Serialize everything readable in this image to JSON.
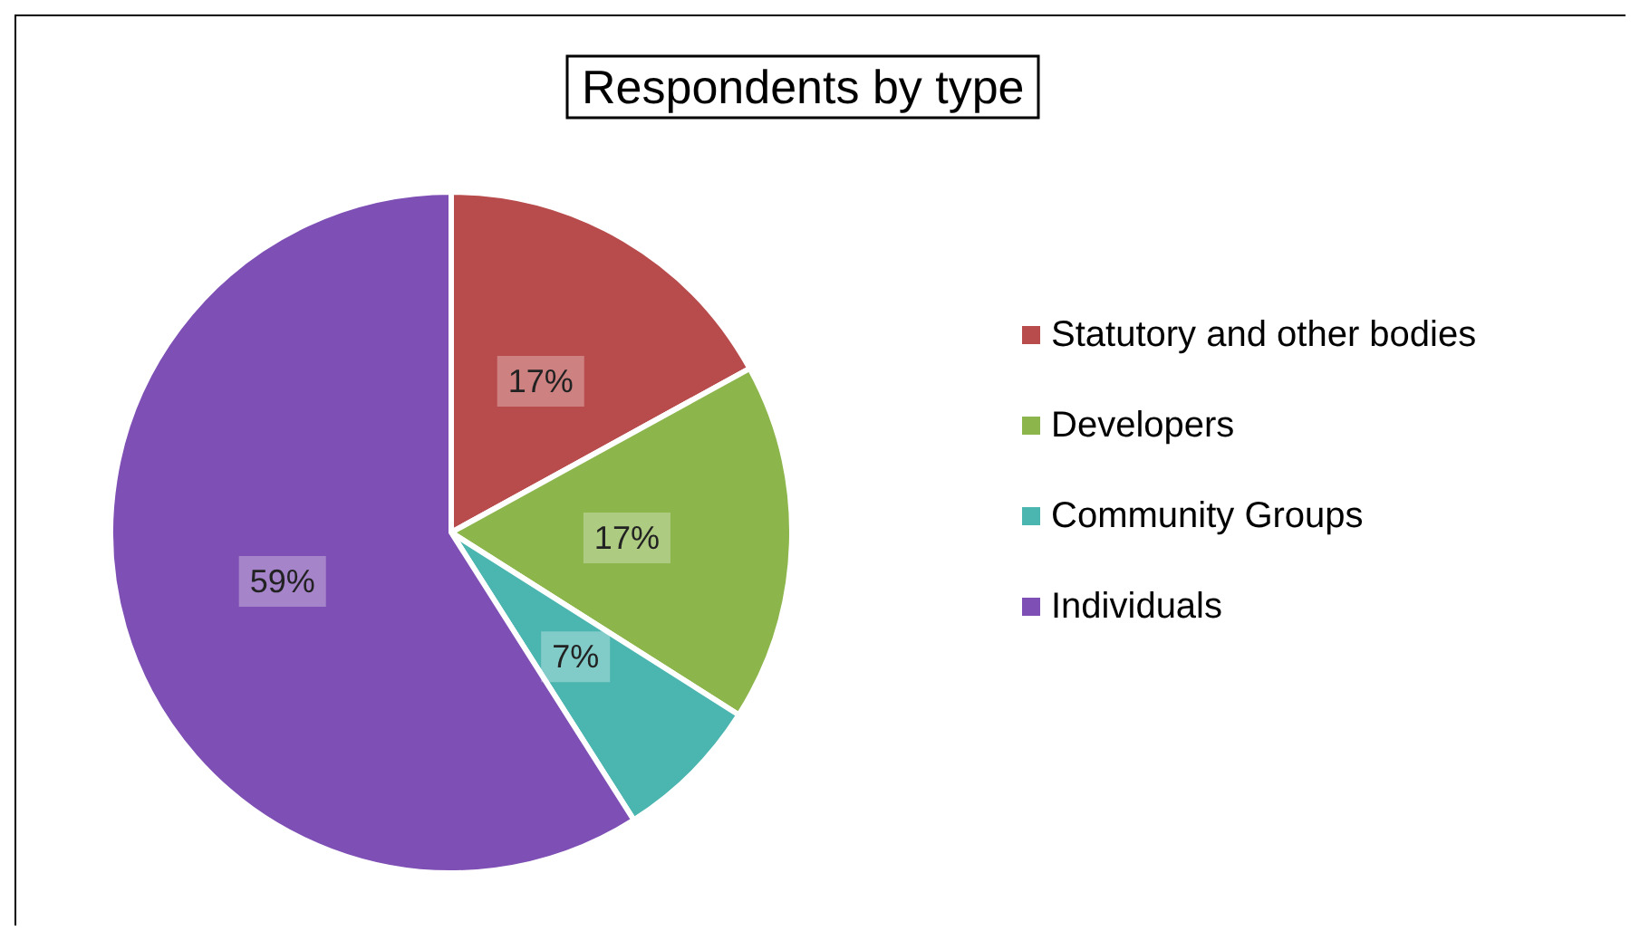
{
  "chart_data": {
    "type": "pie",
    "title": "Respondents by type",
    "categories": [
      "Statutory and other bodies",
      "Developers",
      "Community Groups",
      "Individuals"
    ],
    "values": [
      17,
      17,
      7,
      59
    ],
    "value_labels": [
      "17%",
      "17%",
      "7%",
      "59%"
    ],
    "colors": [
      "#b84b4b",
      "#8cb54c",
      "#4bb5b0",
      "#7e4fb4"
    ],
    "legend": "right"
  }
}
